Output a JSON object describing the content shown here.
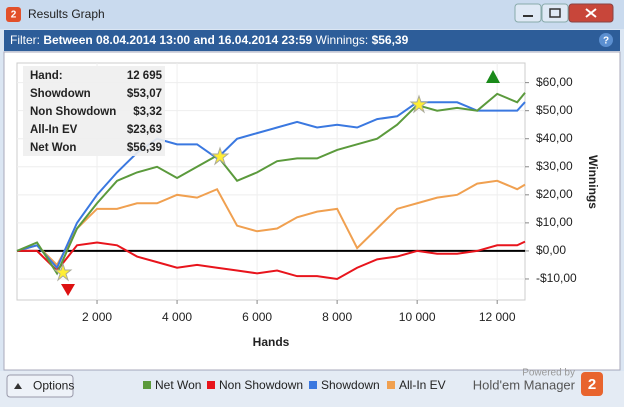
{
  "window": {
    "title": "Results Graph",
    "icon": "2"
  },
  "filter": {
    "label": "Filter:",
    "range": "Between 08.04.2014 13:00 and 16.04.2014 23:59",
    "winnings_label": "Winnings:",
    "winnings": "$56,39",
    "help": "?"
  },
  "stats": [
    {
      "label": "Hand:",
      "value": "12 695"
    },
    {
      "label": "Showdown",
      "value": "$53,07"
    },
    {
      "label": "Non Showdown",
      "value": "$3,32"
    },
    {
      "label": "All-In EV",
      "value": "$23,63"
    },
    {
      "label": "Net Won",
      "value": "$56,39"
    }
  ],
  "chart_data": {
    "type": "line",
    "x_label": "Hands",
    "y_label": "Winnings",
    "x": [
      0,
      500,
      1000,
      1500,
      2000,
      2500,
      3000,
      3500,
      4000,
      4500,
      5000,
      5500,
      6000,
      6500,
      7000,
      7500,
      8000,
      8500,
      9000,
      9500,
      10000,
      10500,
      11000,
      11500,
      12000,
      12500,
      12695
    ],
    "xlim": [
      0,
      12695
    ],
    "xticks": [
      {
        "value": 2000,
        "label": "2 000"
      },
      {
        "value": 4000,
        "label": "4 000"
      },
      {
        "value": 6000,
        "label": "6 000"
      },
      {
        "value": 8000,
        "label": "8 000"
      },
      {
        "value": 10000,
        "label": "10 000"
      },
      {
        "value": 12000,
        "label": "12 000"
      }
    ],
    "ylim": [
      -17.5,
      67
    ],
    "yticks": [
      {
        "value": -10,
        "label": "-$10,00"
      },
      {
        "value": 0,
        "label": "$0,00"
      },
      {
        "value": 10,
        "label": "$10,00"
      },
      {
        "value": 20,
        "label": "$20,00"
      },
      {
        "value": 30,
        "label": "$30,00"
      },
      {
        "value": 40,
        "label": "$40,00"
      },
      {
        "value": 50,
        "label": "$50,00"
      },
      {
        "value": 60,
        "label": "$60,00"
      }
    ],
    "grid": true,
    "series": [
      {
        "name": "Net Won",
        "color": "#5b9a3c",
        "values": [
          0,
          3,
          -8,
          8,
          17,
          25,
          28,
          30,
          26,
          30,
          34,
          25,
          28,
          32,
          33,
          33,
          36,
          38,
          40,
          45,
          52,
          50,
          51,
          50,
          56,
          53,
          56.39
        ]
      },
      {
        "name": "Non Showdown",
        "color": "#e8141c",
        "values": [
          0,
          0,
          -7,
          2,
          3,
          2,
          -2,
          -4,
          -6,
          -5,
          -6,
          -7,
          -8,
          -7,
          -9,
          -9,
          -10,
          -6,
          -3,
          -2,
          0,
          -1,
          -1,
          0,
          2,
          2,
          3.32
        ]
      },
      {
        "name": "Showdown",
        "color": "#3a78e0",
        "values": [
          0,
          2,
          -6,
          10,
          20,
          28,
          35,
          40,
          38,
          38,
          33,
          40,
          42,
          44,
          46,
          44,
          45,
          44,
          47,
          48,
          53,
          53,
          53,
          50,
          50,
          50,
          53.07
        ]
      },
      {
        "name": "All-In EV",
        "color": "#f0a050",
        "values": [
          0,
          2,
          -5,
          8,
          15,
          15,
          17,
          17,
          20,
          19,
          22,
          9,
          7,
          8,
          12,
          14,
          15,
          1,
          8,
          15,
          17,
          19,
          20,
          24,
          25,
          22,
          23.63
        ]
      }
    ]
  },
  "footer": {
    "options": "Options",
    "powered": "Powered by",
    "brand": "Hold'em Manager",
    "logo": "2"
  }
}
